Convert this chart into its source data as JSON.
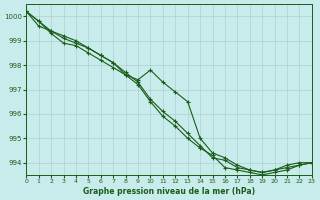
{
  "xlabel": "Graphe pression niveau de la mer (hPa)",
  "xlim": [
    0,
    23
  ],
  "ylim": [
    993.5,
    1000.5
  ],
  "yticks": [
    994,
    995,
    996,
    997,
    998,
    999,
    1000
  ],
  "xticks": [
    0,
    1,
    2,
    3,
    4,
    5,
    6,
    7,
    8,
    9,
    10,
    11,
    12,
    13,
    14,
    15,
    16,
    17,
    18,
    19,
    20,
    21,
    22,
    23
  ],
  "background_color": "#c8ecec",
  "grid_color": "#b0d0d0",
  "line_color": "#1a5c1a",
  "series": [
    [
      1000.2,
      999.8,
      999.3,
      998.9,
      998.8,
      998.5,
      998.2,
      997.9,
      997.6,
      997.2,
      996.5,
      995.9,
      995.5,
      995.0,
      994.6,
      994.3,
      993.8,
      993.7,
      993.6,
      993.5,
      993.6,
      993.7,
      993.9,
      994.0
    ],
    [
      1000.2,
      999.8,
      999.4,
      999.1,
      998.9,
      998.7,
      998.4,
      998.1,
      997.7,
      997.3,
      996.6,
      996.1,
      995.7,
      995.2,
      994.7,
      994.2,
      994.1,
      993.8,
      993.7,
      993.6,
      993.7,
      993.8,
      993.9,
      994.0
    ],
    [
      1000.2,
      999.6,
      999.4,
      999.2,
      999.0,
      998.7,
      998.4,
      998.1,
      997.6,
      997.4,
      997.8,
      997.3,
      996.9,
      996.5,
      995.0,
      994.4,
      994.2,
      993.9,
      993.7,
      993.6,
      993.7,
      993.9,
      994.0,
      994.0
    ]
  ]
}
